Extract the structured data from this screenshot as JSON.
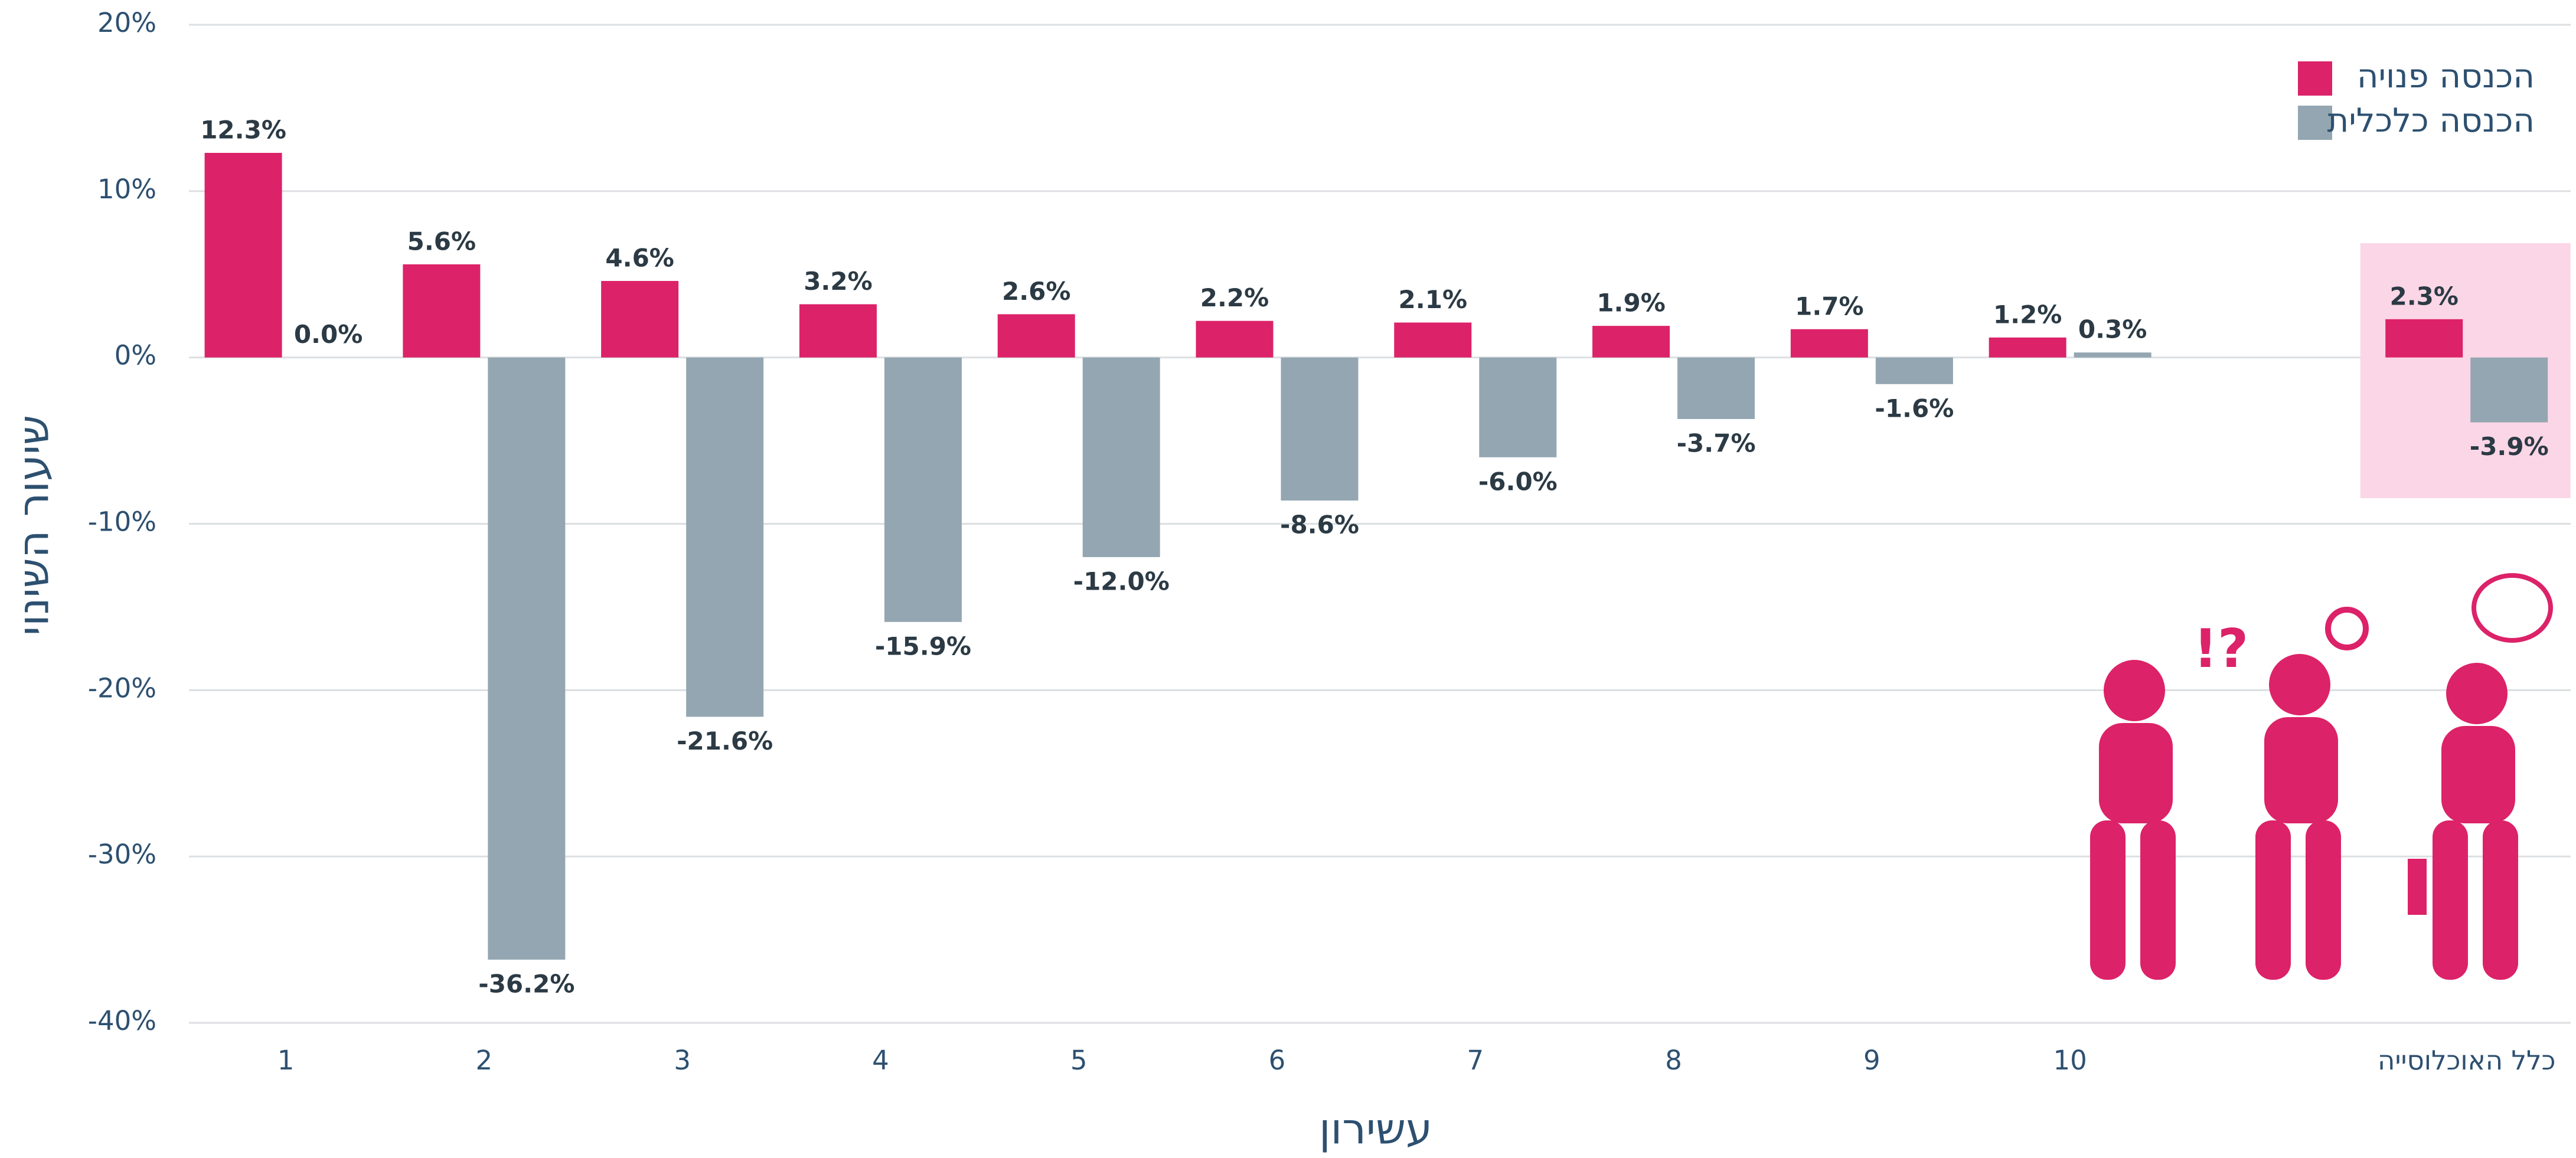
{
  "chart_data": {
    "type": "bar",
    "x_label": "עשירון",
    "y_label": "שיעור השינוי",
    "categories": [
      "1",
      "2",
      "3",
      "4",
      "5",
      "6",
      "7",
      "8",
      "9",
      "10",
      null,
      "כלל האוכלוסייה"
    ],
    "series": [
      {
        "name": "הכנסה פנויה",
        "color": "#dc2268",
        "values": [
          12.3,
          5.6,
          4.6,
          3.2,
          2.6,
          2.2,
          2.1,
          1.9,
          1.7,
          1.2,
          null,
          2.3
        ],
        "value_labels": [
          "12.3%",
          "5.6%",
          "4.6%",
          "3.2%",
          "2.6%",
          "2.2%",
          "2.1%",
          "1.9%",
          "1.7%",
          "1.2%",
          null,
          "2.3%"
        ]
      },
      {
        "name": "הכנסה כלכלית",
        "color": "#94a6b1",
        "values": [
          0.0,
          -36.2,
          -21.6,
          -15.9,
          -12.0,
          -8.6,
          -6.0,
          -3.7,
          -1.6,
          0.3,
          null,
          -3.9
        ],
        "value_labels": [
          "0.0%",
          "-36.2%",
          "-21.6%",
          "-15.9%",
          "-12.0%",
          "-8.6%",
          "-6.0%",
          "-3.7%",
          "-1.6%",
          "0.3%",
          null,
          "-3.9%"
        ]
      }
    ],
    "ylim": [
      -40,
      20
    ],
    "yticks": [
      {
        "value": -40,
        "label": "-40%"
      },
      {
        "value": -30,
        "label": "-30%"
      },
      {
        "value": -20,
        "label": "-20%"
      },
      {
        "value": -10,
        "label": "-10%"
      },
      {
        "value": 0,
        "label": "0%"
      },
      {
        "value": 10,
        "label": "10%"
      },
      {
        "value": 20,
        "label": "20%"
      }
    ],
    "grid": true,
    "legend": "top-right"
  }
}
